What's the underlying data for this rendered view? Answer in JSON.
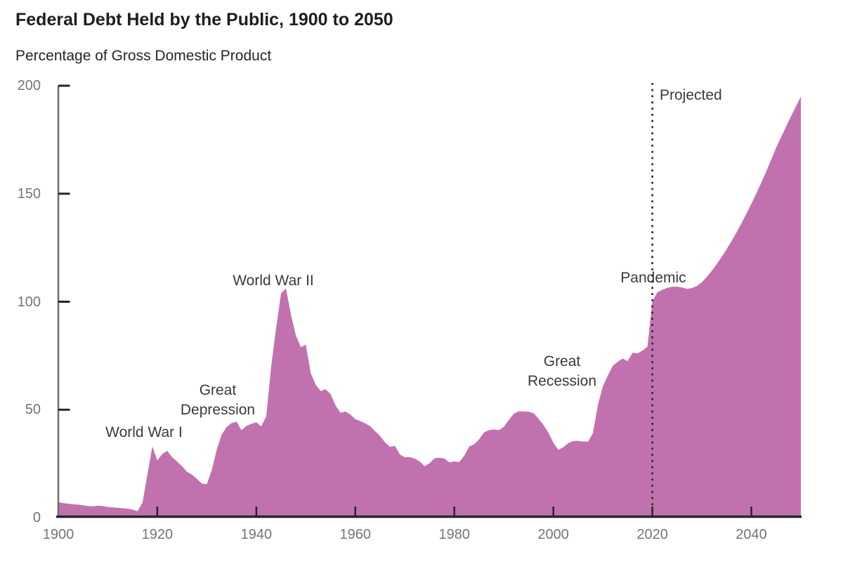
{
  "header": {
    "title": "Federal Debt Held by the Public, 1900 to 2050",
    "subtitle": "Percentage of Gross Domestic Product"
  },
  "annotations": {
    "world_war_1": "World War I",
    "great_depression": {
      "line1": "Great",
      "line2": "Depression"
    },
    "world_war_2": "World War II",
    "great_recession": {
      "line1": "Great",
      "line2": "Recession"
    },
    "pandemic": "Pandemic",
    "projected": "Projected"
  },
  "chart_data": {
    "type": "area",
    "title": "Federal Debt Held by the Public, 1900 to 2050",
    "ylabel": "Percentage of Gross Domestic Product",
    "xlabel": "",
    "x_range": [
      1900,
      2050
    ],
    "y_range": [
      0,
      200
    ],
    "x_ticks": [
      1900,
      1920,
      1940,
      1960,
      1980,
      2000,
      2020,
      2040
    ],
    "y_ticks": [
      0,
      50,
      100,
      150,
      200
    ],
    "grid": false,
    "legend": "none",
    "projection_start_year": 2020,
    "area_color": "#C172AE",
    "axis_color": "#262626",
    "y_axis_line_color": "#6E6E6E",
    "tick_label_color": "#757575",
    "series": [
      {
        "name": "Federal debt held by the public (% of GDP)",
        "points": [
          [
            1900,
            7.2
          ],
          [
            1901,
            6.8
          ],
          [
            1902,
            6.5
          ],
          [
            1903,
            6.2
          ],
          [
            1904,
            6.1
          ],
          [
            1905,
            5.8
          ],
          [
            1906,
            5.4
          ],
          [
            1907,
            5.3
          ],
          [
            1908,
            5.6
          ],
          [
            1909,
            5.4
          ],
          [
            1910,
            5.0
          ],
          [
            1911,
            4.8
          ],
          [
            1912,
            4.6
          ],
          [
            1913,
            4.4
          ],
          [
            1914,
            4.2
          ],
          [
            1915,
            3.8
          ],
          [
            1916,
            3.0
          ],
          [
            1917,
            7.0
          ],
          [
            1918,
            20.0
          ],
          [
            1919,
            33.0
          ],
          [
            1920,
            26.5
          ],
          [
            1921,
            29.5
          ],
          [
            1922,
            31.0
          ],
          [
            1923,
            28.0
          ],
          [
            1924,
            26.0
          ],
          [
            1925,
            23.8
          ],
          [
            1926,
            21.3
          ],
          [
            1927,
            19.9
          ],
          [
            1928,
            18.0
          ],
          [
            1929,
            15.8
          ],
          [
            1930,
            15.5
          ],
          [
            1931,
            22.0
          ],
          [
            1932,
            31.5
          ],
          [
            1933,
            38.5
          ],
          [
            1934,
            42.0
          ],
          [
            1935,
            43.8
          ],
          [
            1936,
            44.5
          ],
          [
            1937,
            40.5
          ],
          [
            1938,
            42.5
          ],
          [
            1939,
            43.5
          ],
          [
            1940,
            44.2
          ],
          [
            1941,
            42.3
          ],
          [
            1942,
            47.0
          ],
          [
            1943,
            70.0
          ],
          [
            1944,
            88.0
          ],
          [
            1945,
            103.9
          ],
          [
            1946,
            106.1
          ],
          [
            1947,
            94.0
          ],
          [
            1948,
            84.3
          ],
          [
            1949,
            79.0
          ],
          [
            1950,
            80.2
          ],
          [
            1951,
            66.9
          ],
          [
            1952,
            61.6
          ],
          [
            1953,
            58.6
          ],
          [
            1954,
            59.5
          ],
          [
            1955,
            57.2
          ],
          [
            1956,
            52.0
          ],
          [
            1957,
            48.6
          ],
          [
            1958,
            49.2
          ],
          [
            1959,
            47.8
          ],
          [
            1960,
            45.6
          ],
          [
            1961,
            44.8
          ],
          [
            1962,
            43.7
          ],
          [
            1963,
            42.4
          ],
          [
            1964,
            40.0
          ],
          [
            1965,
            37.9
          ],
          [
            1966,
            34.9
          ],
          [
            1967,
            32.8
          ],
          [
            1968,
            33.3
          ],
          [
            1969,
            29.3
          ],
          [
            1970,
            28.0
          ],
          [
            1971,
            28.1
          ],
          [
            1972,
            27.4
          ],
          [
            1973,
            26.0
          ],
          [
            1974,
            23.9
          ],
          [
            1975,
            25.3
          ],
          [
            1976,
            27.5
          ],
          [
            1977,
            27.8
          ],
          [
            1978,
            27.4
          ],
          [
            1979,
            25.6
          ],
          [
            1980,
            26.1
          ],
          [
            1981,
            25.8
          ],
          [
            1982,
            28.7
          ],
          [
            1983,
            33.0
          ],
          [
            1984,
            34.0
          ],
          [
            1985,
            36.3
          ],
          [
            1986,
            39.5
          ],
          [
            1987,
            40.6
          ],
          [
            1988,
            40.9
          ],
          [
            1989,
            40.6
          ],
          [
            1990,
            42.1
          ],
          [
            1991,
            45.3
          ],
          [
            1992,
            48.1
          ],
          [
            1993,
            49.3
          ],
          [
            1994,
            49.2
          ],
          [
            1995,
            49.1
          ],
          [
            1996,
            48.4
          ],
          [
            1997,
            45.9
          ],
          [
            1998,
            43.0
          ],
          [
            1999,
            39.4
          ],
          [
            2000,
            34.7
          ],
          [
            2001,
            31.4
          ],
          [
            2002,
            32.6
          ],
          [
            2003,
            34.5
          ],
          [
            2004,
            35.5
          ],
          [
            2005,
            35.6
          ],
          [
            2006,
            35.3
          ],
          [
            2007,
            35.2
          ],
          [
            2008,
            39.2
          ],
          [
            2009,
            52.3
          ],
          [
            2010,
            60.8
          ],
          [
            2011,
            65.8
          ],
          [
            2012,
            70.3
          ],
          [
            2013,
            72.2
          ],
          [
            2014,
            73.7
          ],
          [
            2015,
            72.5
          ],
          [
            2016,
            76.4
          ],
          [
            2017,
            76.1
          ],
          [
            2018,
            77.4
          ],
          [
            2019,
            79.2
          ],
          [
            2020,
            100.1
          ],
          [
            2021,
            104.4
          ],
          [
            2022,
            105.5
          ],
          [
            2023,
            106.4
          ],
          [
            2024,
            106.9
          ],
          [
            2025,
            107.0
          ],
          [
            2026,
            106.6
          ],
          [
            2027,
            106.0
          ],
          [
            2028,
            106.3
          ],
          [
            2029,
            107.3
          ],
          [
            2030,
            109.0
          ],
          [
            2031,
            111.5
          ],
          [
            2032,
            114.3
          ],
          [
            2033,
            117.4
          ],
          [
            2034,
            120.7
          ],
          [
            2035,
            124.3
          ],
          [
            2036,
            128.1
          ],
          [
            2037,
            132.1
          ],
          [
            2038,
            136.3
          ],
          [
            2039,
            140.7
          ],
          [
            2040,
            145.3
          ],
          [
            2041,
            150.1
          ],
          [
            2042,
            155.1
          ],
          [
            2043,
            160.3
          ],
          [
            2044,
            165.7
          ],
          [
            2045,
            171.3
          ],
          [
            2046,
            176.2
          ],
          [
            2047,
            181.0
          ],
          [
            2048,
            185.8
          ],
          [
            2049,
            190.4
          ],
          [
            2050,
            195.0
          ]
        ]
      }
    ]
  }
}
